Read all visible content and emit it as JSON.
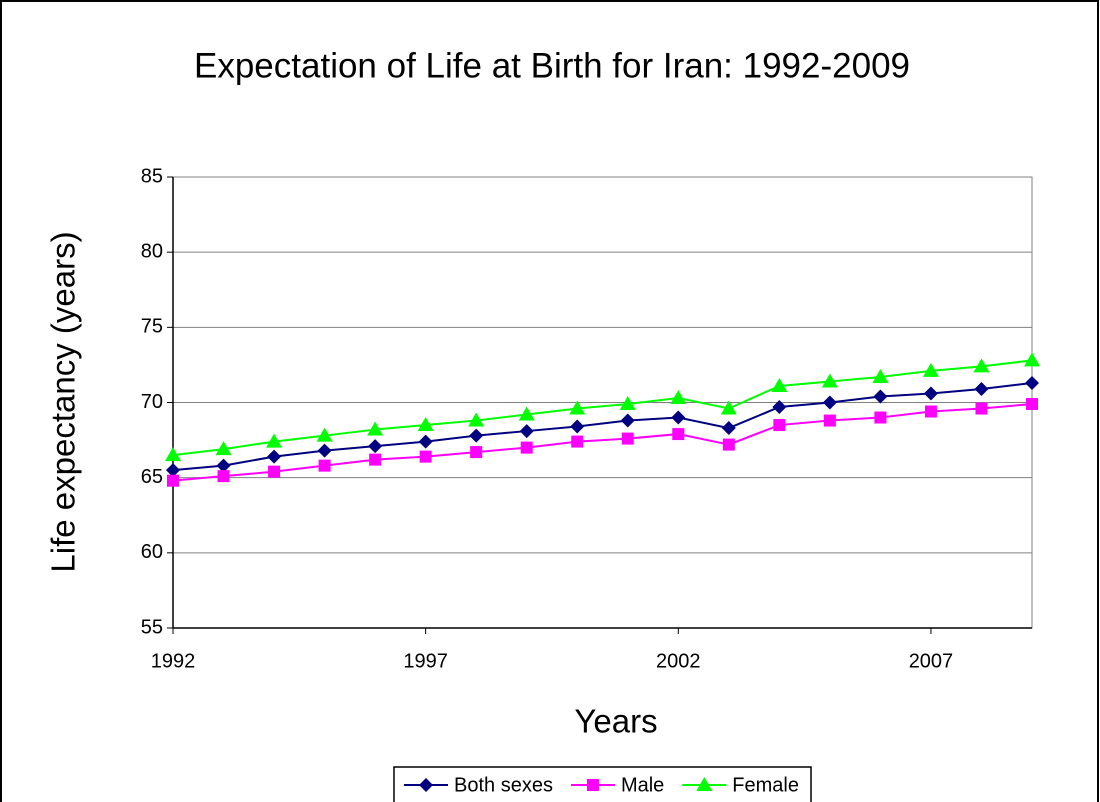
{
  "chart_data": {
    "type": "line",
    "title": "Expectation of Life at Birth for Iran:  1992-2009",
    "x_label": "Years",
    "y_label": "Life expectancy (years)",
    "x": [
      1992,
      1993,
      1994,
      1995,
      1996,
      1997,
      1998,
      1999,
      2000,
      2001,
      2002,
      2003,
      2004,
      2005,
      2006,
      2007,
      2008,
      2009
    ],
    "series": [
      {
        "name": "Both sexes",
        "color": "#000080",
        "marker": "diamond",
        "values": [
          65.5,
          65.8,
          66.4,
          66.8,
          67.1,
          67.4,
          67.8,
          68.1,
          68.4,
          68.8,
          69.0,
          68.3,
          69.7,
          70.0,
          70.4,
          70.6,
          70.9,
          71.3
        ]
      },
      {
        "name": "Male",
        "color": "#ff00ff",
        "marker": "square",
        "values": [
          64.8,
          65.1,
          65.4,
          65.8,
          66.2,
          66.4,
          66.7,
          67.0,
          67.4,
          67.6,
          67.9,
          67.2,
          68.5,
          68.8,
          69.0,
          69.4,
          69.6,
          69.9
        ]
      },
      {
        "name": "Female",
        "color": "#00ff00",
        "marker": "triangle",
        "values": [
          66.5,
          66.9,
          67.4,
          67.8,
          68.2,
          68.5,
          68.8,
          69.2,
          69.6,
          69.9,
          70.3,
          69.6,
          71.1,
          71.4,
          71.7,
          72.1,
          72.4,
          72.8
        ]
      }
    ],
    "xlim": [
      1992,
      2009
    ],
    "xticks": [
      1992,
      1997,
      2002,
      2007
    ],
    "ylim": [
      55,
      85
    ],
    "yticks": [
      55,
      60,
      65,
      70,
      75,
      80,
      85
    ],
    "grid": true,
    "legend": "bottom"
  }
}
